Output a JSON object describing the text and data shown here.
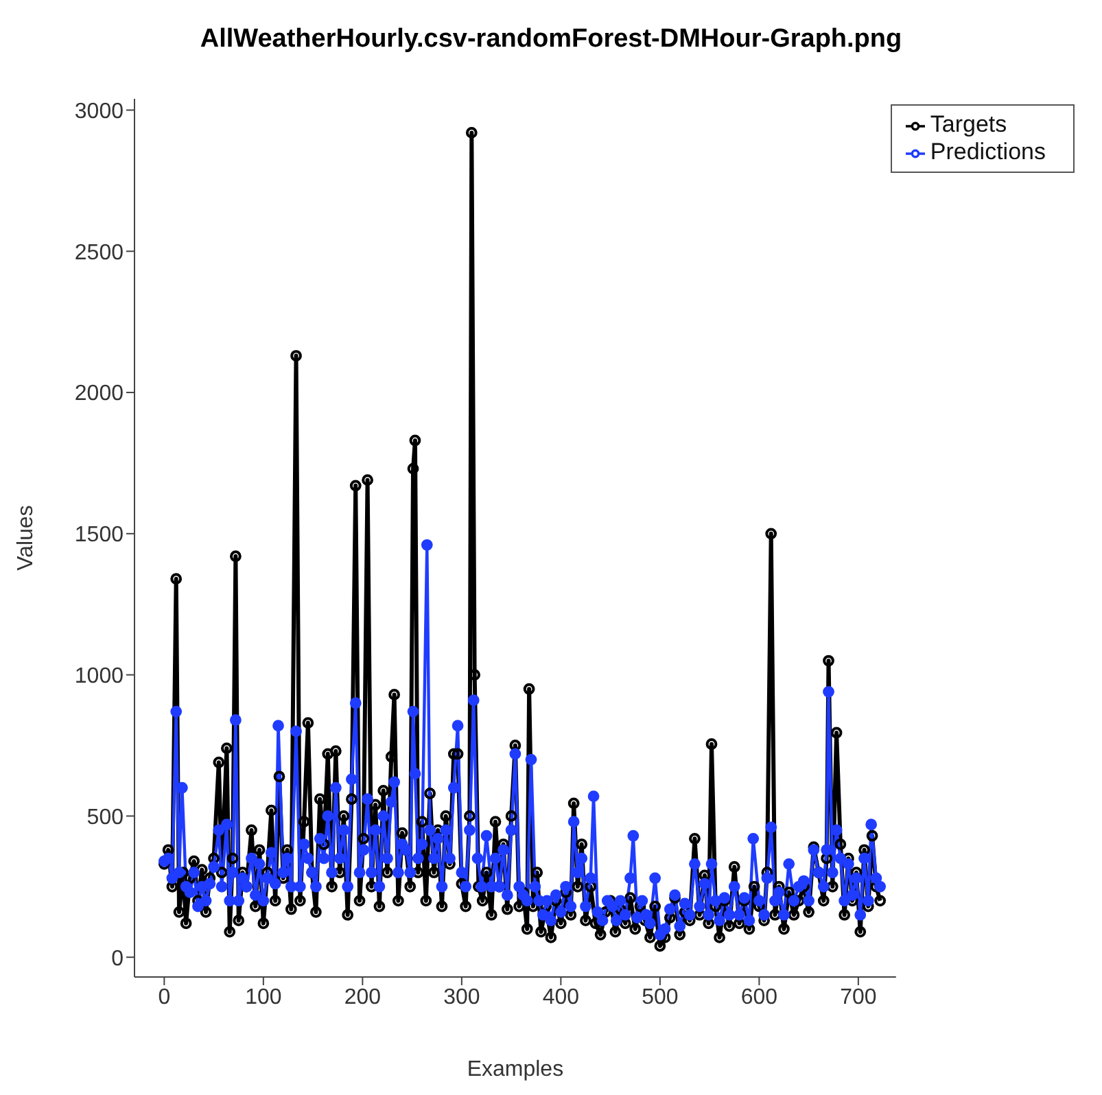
{
  "chart_data": {
    "type": "line",
    "title": "AllWeatherHourly.csv-randomForest-DMHour-Graph.png",
    "xlabel": "Examples",
    "ylabel": "Values",
    "xlim": [
      -30,
      738
    ],
    "ylim": [
      -70,
      3040
    ],
    "xticks": [
      0,
      100,
      200,
      300,
      400,
      500,
      600,
      700
    ],
    "yticks": [
      0,
      500,
      1000,
      1500,
      2000,
      2500,
      3000
    ],
    "grid": false,
    "legend": "top right",
    "marker": "circle",
    "line_style": "solid",
    "series": [
      {
        "name": "Targets",
        "color": "#000000",
        "x": [
          0,
          4,
          8,
          12,
          15,
          19,
          22,
          26,
          30,
          34,
          38,
          42,
          46,
          50,
          55,
          58,
          63,
          66,
          69,
          72,
          75,
          79,
          83,
          88,
          92,
          96,
          100,
          104,
          108,
          112,
          116,
          120,
          124,
          128,
          133,
          137,
          141,
          145,
          149,
          153,
          157,
          161,
          165,
          169,
          173,
          177,
          181,
          185,
          189,
          193,
          197,
          201,
          205,
          209,
          213,
          217,
          221,
          225,
          229,
          232,
          236,
          240,
          244,
          248,
          251,
          253,
          256,
          260,
          264,
          268,
          272,
          276,
          280,
          284,
          288,
          292,
          296,
          300,
          304,
          308,
          310,
          313,
          317,
          321,
          325,
          330,
          334,
          338,
          342,
          346,
          350,
          354,
          358,
          362,
          366,
          368,
          372,
          376,
          380,
          385,
          390,
          395,
          400,
          405,
          410,
          413,
          417,
          421,
          425,
          430,
          435,
          440,
          445,
          450,
          455,
          460,
          465,
          470,
          475,
          480,
          485,
          490,
          495,
          500,
          505,
          510,
          515,
          520,
          525,
          530,
          535,
          540,
          545,
          549,
          552,
          556,
          560,
          565,
          570,
          575,
          580,
          585,
          590,
          595,
          600,
          605,
          608,
          612,
          616,
          620,
          625,
          630,
          635,
          640,
          645,
          650,
          655,
          660,
          665,
          668,
          670,
          674,
          678,
          682,
          686,
          690,
          694,
          698,
          702,
          706,
          710,
          714,
          718,
          722
        ],
        "values": [
          330,
          380,
          250,
          1340,
          160,
          300,
          120,
          280,
          340,
          200,
          310,
          160,
          280,
          350,
          690,
          300,
          740,
          90,
          350,
          1420,
          130,
          300,
          250,
          450,
          180,
          380,
          120,
          300,
          520,
          200,
          640,
          280,
          380,
          170,
          2130,
          200,
          480,
          830,
          300,
          160,
          560,
          400,
          720,
          250,
          730,
          300,
          500,
          150,
          560,
          1670,
          200,
          420,
          1690,
          250,
          540,
          180,
          590,
          300,
          710,
          930,
          200,
          440,
          380,
          250,
          1730,
          1830,
          300,
          480,
          200,
          580,
          300,
          450,
          180,
          500,
          330,
          720,
          720,
          260,
          180,
          500,
          2920,
          1000,
          250,
          200,
          300,
          150,
          480,
          250,
          400,
          170,
          500,
          750,
          180,
          230,
          100,
          950,
          180,
          300,
          90,
          180,
          70,
          200,
          120,
          230,
          150,
          545,
          250,
          400,
          130,
          250,
          120,
          80,
          160,
          200,
          90,
          170,
          120,
          210,
          100,
          180,
          130,
          70,
          180,
          40,
          70,
          140,
          210,
          80,
          160,
          130,
          420,
          150,
          290,
          120,
          755,
          180,
          70,
          200,
          110,
          320,
          120,
          200,
          100,
          250,
          180,
          130,
          300,
          1500,
          150,
          250,
          100,
          230,
          150,
          200,
          250,
          160,
          390,
          300,
          200,
          350,
          1050,
          250,
          795,
          400,
          150,
          350,
          200,
          300,
          90,
          380,
          180,
          430,
          250,
          200
        ]
      },
      {
        "name": "Predictions",
        "color": "#1f3cff",
        "x": [
          0,
          4,
          8,
          12,
          15,
          18,
          22,
          26,
          30,
          34,
          38,
          42,
          46,
          50,
          55,
          58,
          63,
          66,
          69,
          72,
          75,
          79,
          83,
          88,
          92,
          96,
          100,
          104,
          108,
          112,
          115,
          120,
          124,
          128,
          133,
          137,
          141,
          145,
          149,
          153,
          157,
          161,
          165,
          169,
          173,
          177,
          181,
          185,
          189,
          193,
          197,
          201,
          205,
          209,
          213,
          217,
          221,
          225,
          229,
          232,
          236,
          240,
          244,
          248,
          251,
          253,
          256,
          260,
          265,
          268,
          272,
          276,
          280,
          284,
          288,
          292,
          296,
          300,
          304,
          308,
          312,
          316,
          320,
          325,
          330,
          334,
          338,
          342,
          346,
          350,
          354,
          358,
          362,
          366,
          370,
          374,
          378,
          382,
          386,
          390,
          395,
          400,
          405,
          410,
          413,
          417,
          421,
          425,
          430,
          433,
          437,
          442,
          447,
          452,
          456,
          460,
          465,
          470,
          473,
          477,
          482,
          486,
          490,
          495,
          500,
          505,
          510,
          515,
          520,
          525,
          530,
          535,
          540,
          545,
          549,
          552,
          556,
          560,
          565,
          570,
          575,
          580,
          585,
          590,
          594,
          600,
          605,
          608,
          612,
          616,
          620,
          625,
          630,
          635,
          640,
          645,
          650,
          655,
          660,
          665,
          668,
          670,
          674,
          678,
          682,
          686,
          690,
          694,
          698,
          702,
          706,
          710,
          713,
          718,
          722
        ],
        "values": [
          340,
          350,
          280,
          870,
          300,
          600,
          250,
          230,
          300,
          180,
          250,
          200,
          260,
          320,
          450,
          250,
          470,
          200,
          300,
          840,
          200,
          280,
          250,
          350,
          220,
          330,
          200,
          280,
          370,
          260,
          820,
          300,
          350,
          250,
          800,
          250,
          400,
          350,
          300,
          250,
          420,
          350,
          500,
          300,
          600,
          350,
          450,
          250,
          630,
          900,
          300,
          380,
          560,
          300,
          450,
          250,
          500,
          350,
          550,
          620,
          300,
          400,
          380,
          300,
          870,
          650,
          350,
          400,
          1460,
          450,
          350,
          420,
          250,
          450,
          350,
          600,
          820,
          300,
          250,
          450,
          910,
          350,
          250,
          430,
          250,
          350,
          250,
          380,
          220,
          450,
          720,
          250,
          220,
          200,
          700,
          250,
          200,
          150,
          200,
          130,
          220,
          160,
          250,
          180,
          480,
          300,
          350,
          180,
          280,
          570,
          160,
          130,
          200,
          180,
          130,
          200,
          150,
          280,
          430,
          140,
          200,
          150,
          120,
          280,
          80,
          100,
          170,
          220,
          110,
          190,
          150,
          330,
          180,
          260,
          150,
          330,
          200,
          130,
          210,
          150,
          250,
          150,
          210,
          130,
          420,
          200,
          150,
          280,
          460,
          200,
          230,
          150,
          330,
          200,
          250,
          270,
          200,
          380,
          300,
          250,
          380,
          940,
          300,
          450,
          350,
          200,
          330,
          220,
          280,
          150,
          350,
          200,
          470,
          280,
          250
        ]
      }
    ]
  }
}
